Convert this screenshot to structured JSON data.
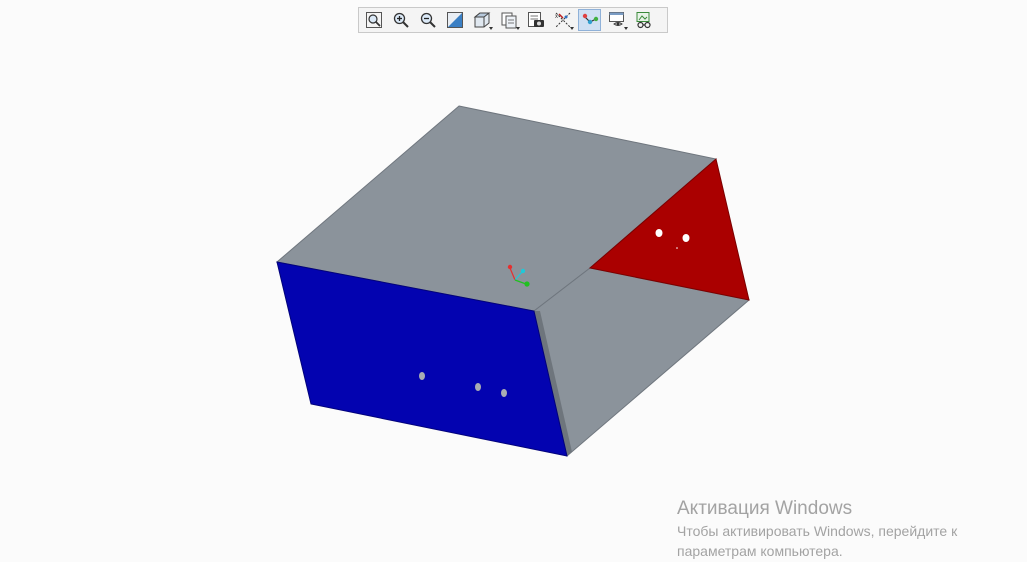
{
  "toolbar": {
    "buttons": [
      {
        "icon": "zoom-fit-icon"
      },
      {
        "icon": "zoom-in-icon"
      },
      {
        "icon": "zoom-out-icon"
      },
      {
        "icon": "repaint-icon"
      },
      {
        "icon": "display-style-icon",
        "dropdown": true
      },
      {
        "icon": "named-views-icon",
        "dropdown": true
      },
      {
        "icon": "saved-views-icon"
      },
      {
        "icon": "datum-display-icon",
        "dropdown": true
      },
      {
        "icon": "spin-center-icon",
        "active": true
      },
      {
        "icon": "view-manager-icon",
        "dropdown": true
      },
      {
        "icon": "appearance-icon"
      }
    ]
  },
  "model": {
    "colors": {
      "gray_face": "#8b939b",
      "blue_face": "#0303b0",
      "red_face": "#aa0000",
      "edge": "#5a5f66",
      "hole": "#a9adb3"
    }
  },
  "watermark": {
    "title": "Активация Windows",
    "line1": "Чтобы активировать Windows, перейдите к",
    "line2": "параметрам компьютера."
  }
}
